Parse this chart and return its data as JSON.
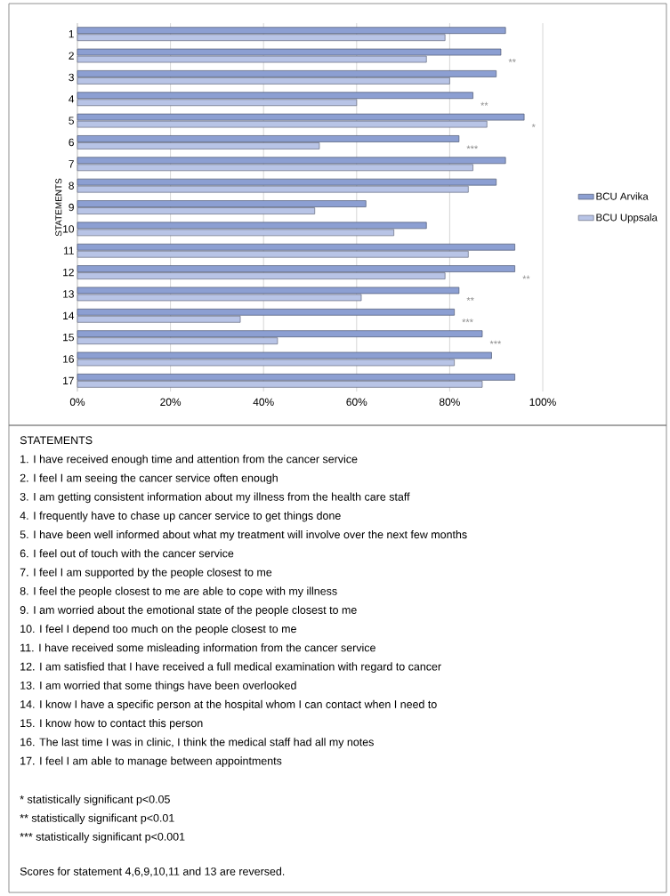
{
  "chart_data": {
    "type": "bar",
    "orientation": "horizontal",
    "ylabel": "STATEMENTS",
    "categories": [
      "1",
      "2",
      "3",
      "4",
      "5",
      "6",
      "7",
      "8",
      "9",
      "10",
      "11",
      "12",
      "13",
      "14",
      "15",
      "16",
      "17"
    ],
    "series": [
      {
        "name": "BCU Arvika",
        "color": "#8c9fd2",
        "values": [
          92,
          91,
          90,
          85,
          96,
          82,
          92,
          90,
          62,
          75,
          94,
          94,
          82,
          81,
          87,
          89,
          94
        ]
      },
      {
        "name": "BCU Uppsala",
        "color": "#b8c4e6",
        "values": [
          79,
          75,
          80,
          60,
          88,
          52,
          85,
          84,
          51,
          68,
          84,
          79,
          61,
          35,
          43,
          81,
          87
        ]
      }
    ],
    "xlim": [
      0,
      100
    ],
    "xticks": [
      {
        "value": 0,
        "label": "0%"
      },
      {
        "value": 20,
        "label": "20%"
      },
      {
        "value": 40,
        "label": "40%"
      },
      {
        "value": 60,
        "label": "60%"
      },
      {
        "value": 80,
        "label": "80%"
      },
      {
        "value": 100,
        "label": "100%"
      }
    ],
    "grid": "x",
    "legend": "right",
    "annotations": [
      {
        "text": "**",
        "x": 91,
        "y": "2"
      },
      {
        "text": "**",
        "x": 85,
        "y": "4"
      },
      {
        "text": "*",
        "x": 96,
        "y": "5"
      },
      {
        "text": "***",
        "x": 82,
        "y": "6"
      },
      {
        "text": "**",
        "x": 94,
        "y": "12"
      },
      {
        "text": "**",
        "x": 82,
        "y": "13"
      },
      {
        "text": "***",
        "x": 81,
        "y": "14"
      },
      {
        "text": "***",
        "x": 87,
        "y": "15"
      },
      "STATEMENTS",
      "1. I have received enough time and attention from the cancer service",
      "2. I feel I am seeing the cancer service often enough",
      "3. I am getting consistent information about my illness from the health care staff",
      "4. I frequently have to chase up cancer service to get things done",
      "5. I have been well informed about what my treatment will involve over the next few months",
      "6. I feel out of touch with the cancer service",
      "7. I feel I am supported by the people closest to me",
      "8. I feel the people closest to me are able to cope with my illness",
      "9. I am worried about the emotional state of the people closest to me",
      "10. I feel I depend too much on the people closest to me",
      "11. I have received some misleading information from the cancer service",
      "12. I am satisfied that I have received a full medical examination with regard to cancer",
      "13. I am worried that some things have been overlooked",
      "14. I know I have a specific person at the hospital whom I can contact when I need to",
      "15. I know how to contact this person",
      "16. The last time I was in clinic, I think the medical staff had all my notes",
      "17. I feel I am able to manage between appointments",
      "* statistically significant p<0.05",
      "** statistically significant p<0.01",
      "*** statistically significant p<0.001",
      "Scores for statement 4,6,9,10,11 and 13 are reversed."
    ]
  }
}
